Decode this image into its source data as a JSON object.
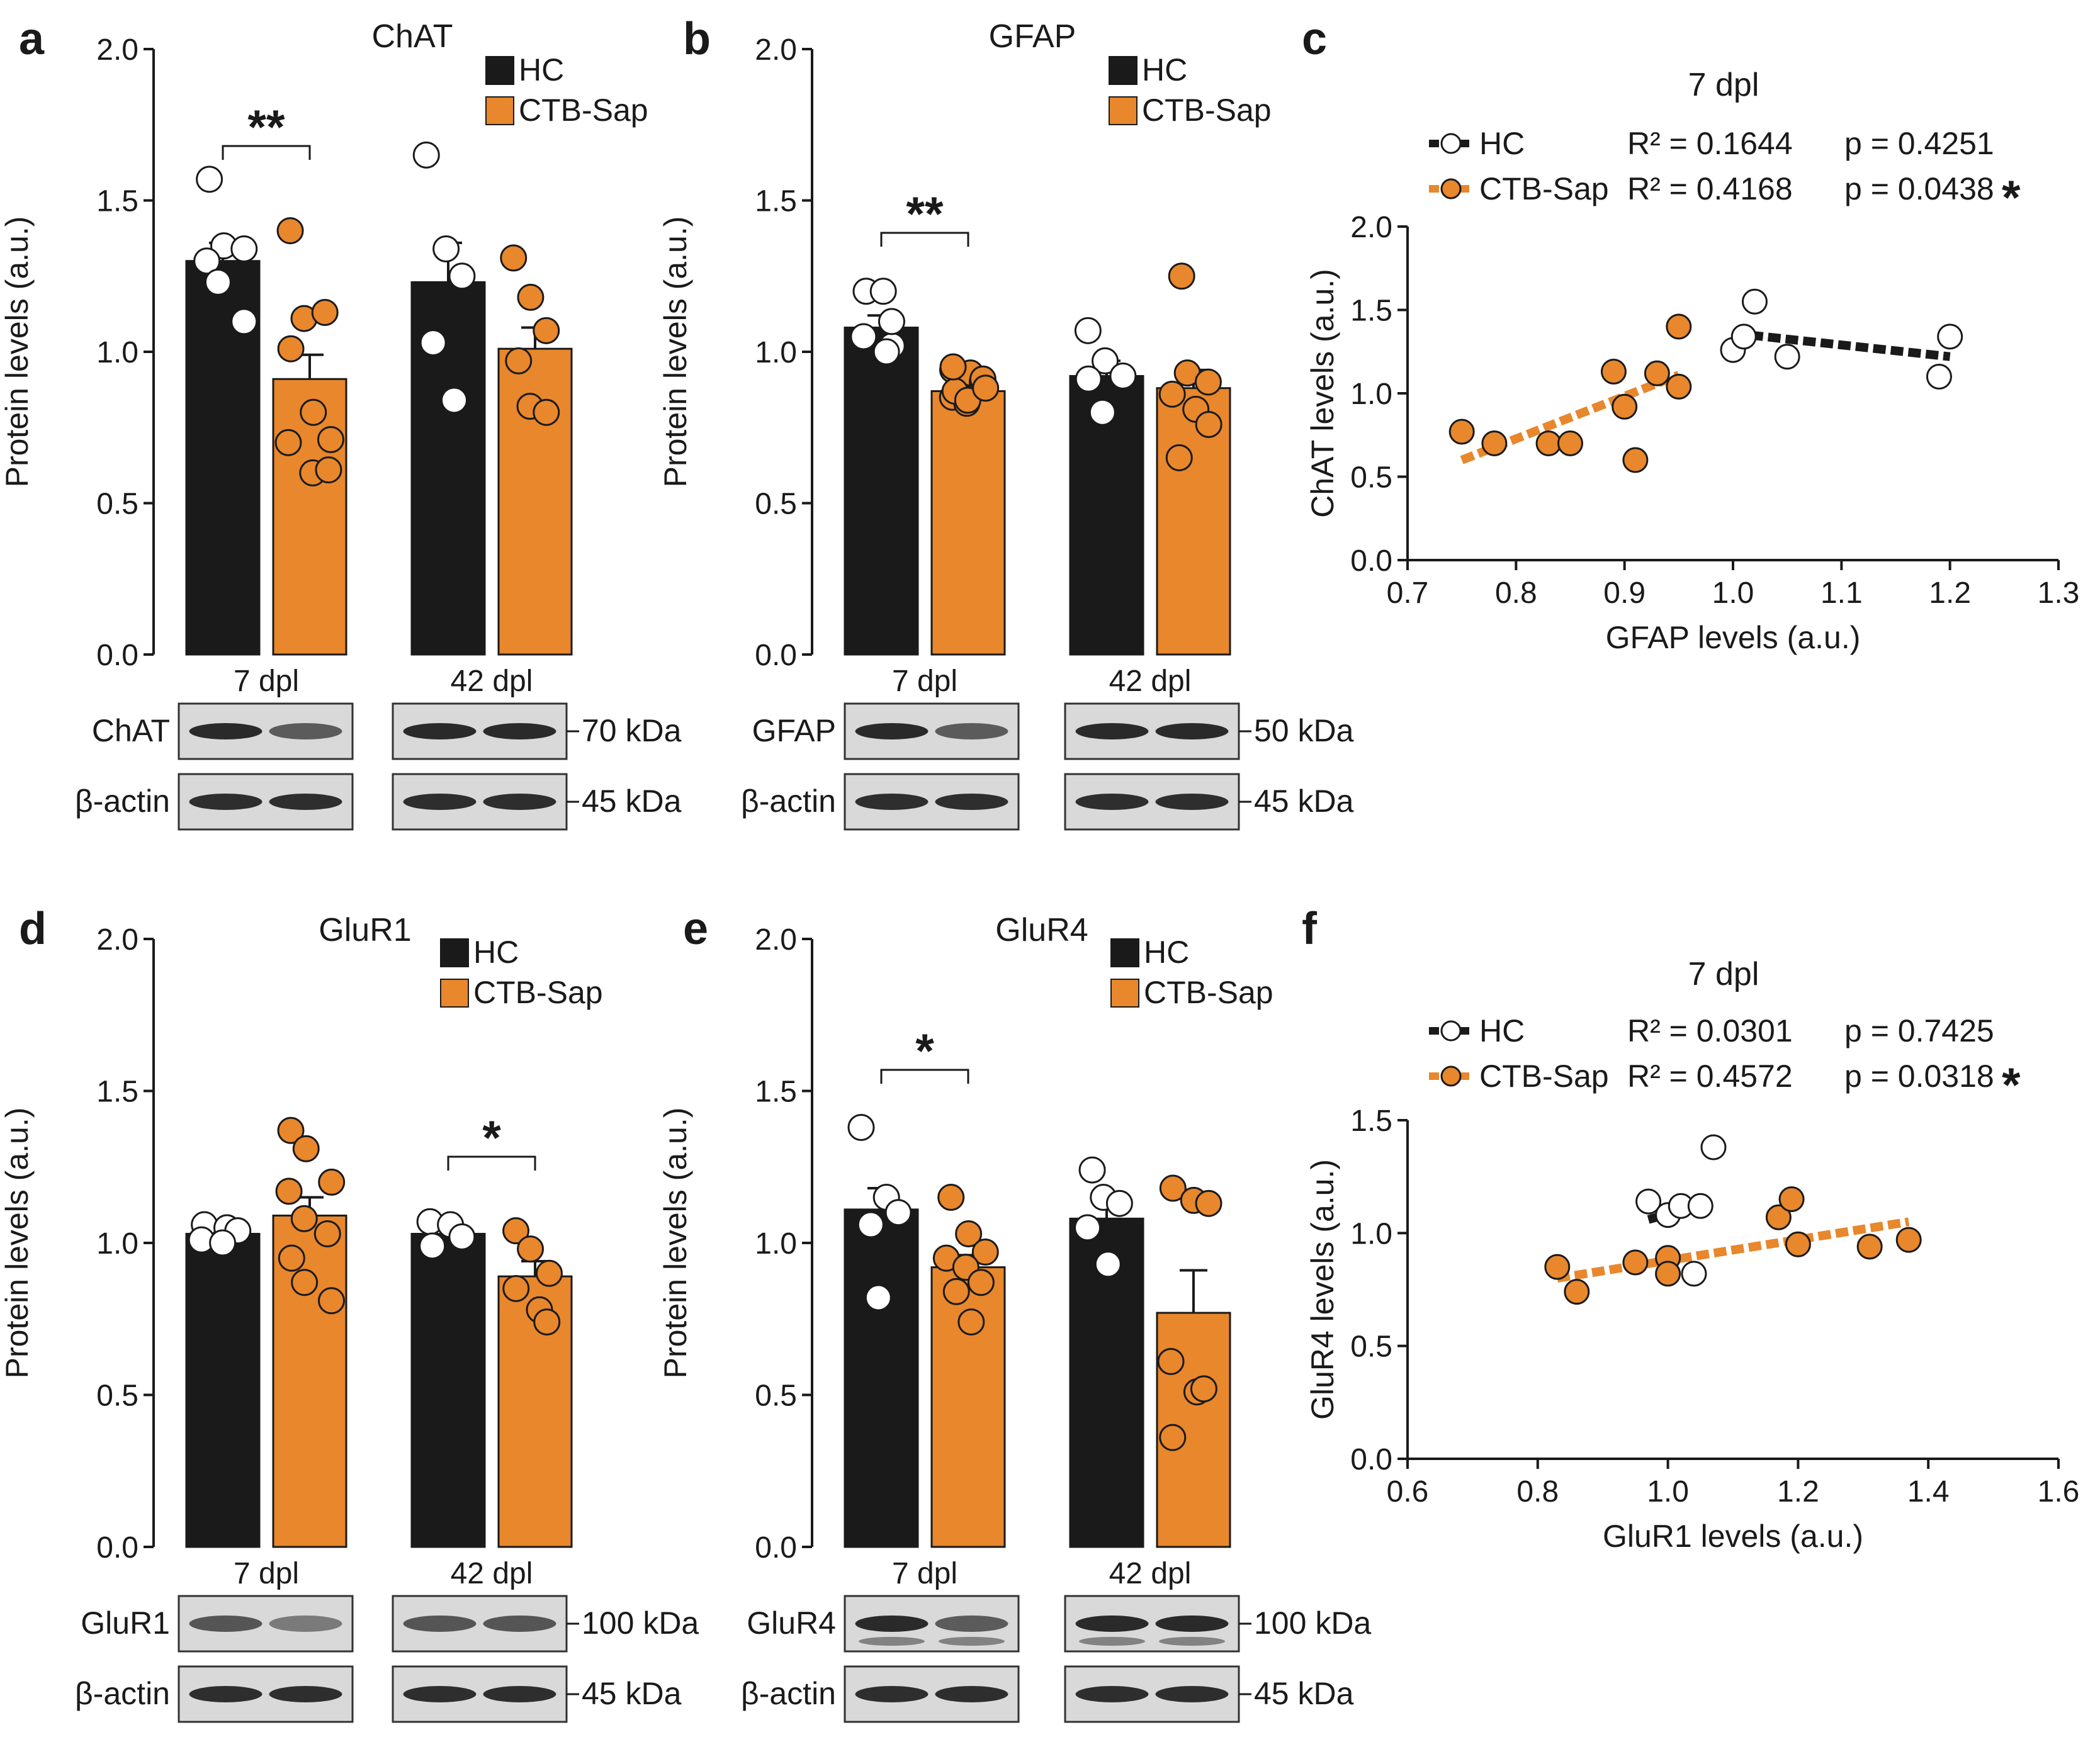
{
  "colors": {
    "hc": "#1a1a1a",
    "ctb": "#e8872c",
    "axis": "#1a1a1a",
    "membrane": "#d9d9d9"
  },
  "legend": {
    "hc": "HC",
    "ctb": "CTB-Sap"
  },
  "chart_data": [
    {
      "panel": "a",
      "type": "bar",
      "title": "ChAT",
      "ylabel": "Protein levels (a.u.)",
      "ylim": [
        0,
        2.0
      ],
      "yticks": [
        "0.0",
        "0.5",
        "1.0",
        "1.5",
        "2.0"
      ],
      "categories": [
        "7 dpl",
        "42 dpl"
      ],
      "series": [
        {
          "name": "HC",
          "means": [
            1.3,
            1.23
          ],
          "sem": [
            0.06,
            0.13
          ],
          "points": [
            [
              1.57,
              1.35,
              1.34,
              1.3,
              1.23,
              1.1
            ],
            [
              1.65,
              1.34,
              1.25,
              1.03,
              0.84
            ]
          ]
        },
        {
          "name": "CTB-Sap",
          "means": [
            0.91,
            1.01
          ],
          "sem": [
            0.08,
            0.07
          ],
          "points": [
            [
              1.4,
              1.11,
              1.13,
              1.01,
              0.8,
              0.71,
              0.7,
              0.6,
              0.61
            ],
            [
              1.31,
              1.18,
              1.07,
              0.97,
              0.82,
              0.8
            ]
          ]
        }
      ],
      "significance": [
        {
          "group": "7 dpl",
          "label": "**"
        }
      ],
      "blot": {
        "gel": "7 dpl",
        "gel2": "42 dpl",
        "rows": [
          {
            "label": "ChAT",
            "kda": "70 kDa"
          },
          {
            "label": "β-actin",
            "kda": "45 kDa"
          }
        ]
      }
    },
    {
      "panel": "b",
      "type": "bar",
      "title": "GFAP",
      "ylabel": "Protein levels (a.u.)",
      "ylim": [
        0,
        2.0
      ],
      "yticks": [
        "0.0",
        "0.5",
        "1.0",
        "1.5",
        "2.0"
      ],
      "categories": [
        "7 dpl",
        "42 dpl"
      ],
      "series": [
        {
          "name": "HC",
          "means": [
            1.08,
            0.92
          ],
          "sem": [
            0.04,
            0.05
          ],
          "points": [
            [
              1.2,
              1.2,
              1.02,
              1.05,
              1.0,
              1.1
            ],
            [
              1.07,
              0.97,
              0.92,
              0.91,
              0.8
            ]
          ]
        },
        {
          "name": "CTB-Sap",
          "means": [
            0.87,
            0.88
          ],
          "sem": [
            0.03,
            0.06
          ],
          "points": [
            [
              0.94,
              0.93,
              0.9,
              0.85,
              0.83,
              0.91,
              0.87,
              0.84,
              0.88,
              0.95
            ],
            [
              1.25,
              0.93,
              0.9,
              0.86,
              0.81,
              0.76,
              0.65
            ]
          ]
        }
      ],
      "significance": [
        {
          "group": "7 dpl",
          "label": "**"
        }
      ],
      "blot": {
        "gel": "7 dpl",
        "gel2": "42 dpl",
        "rows": [
          {
            "label": "GFAP",
            "kda": "50 kDa"
          },
          {
            "label": "β-actin",
            "kda": "45 kDa"
          }
        ]
      }
    },
    {
      "panel": "c",
      "type": "scatter",
      "title": "7 dpl",
      "xlabel": "GFAP levels (a.u.)",
      "ylabel": "ChAT levels (a.u.)",
      "xlim": [
        0.7,
        1.3
      ],
      "ylim": [
        0,
        2.0
      ],
      "xticks": [
        "0.7",
        "0.8",
        "0.9",
        "1.0",
        "1.1",
        "1.2",
        "1.3"
      ],
      "yticks": [
        "0.0",
        "0.5",
        "1.0",
        "1.5",
        "2.0"
      ],
      "series": [
        {
          "name": "HC",
          "r2": "R² = 0.1644",
          "p": "p = 0.4251",
          "fit": {
            "x": [
              1.0,
              1.2
            ],
            "y": [
              1.36,
              1.22
            ]
          },
          "points": [
            [
              1.0,
              1.26
            ],
            [
              1.01,
              1.34
            ],
            [
              1.02,
              1.55
            ],
            [
              1.05,
              1.22
            ],
            [
              1.19,
              1.1
            ],
            [
              1.2,
              1.34
            ]
          ]
        },
        {
          "name": "CTB-Sap",
          "r2": "R² = 0.4168",
          "p": "p = 0.0438",
          "fit": {
            "x": [
              0.75,
              0.95
            ],
            "y": [
              0.6,
              1.11
            ]
          },
          "points": [
            [
              0.75,
              0.77
            ],
            [
              0.78,
              0.7
            ],
            [
              0.83,
              0.7
            ],
            [
              0.85,
              0.7
            ],
            [
              0.89,
              1.13
            ],
            [
              0.9,
              0.92
            ],
            [
              0.91,
              0.6
            ],
            [
              0.93,
              1.12
            ],
            [
              0.95,
              1.4
            ],
            [
              0.95,
              1.04
            ]
          ]
        }
      ],
      "star": "*"
    },
    {
      "panel": "d",
      "type": "bar",
      "title": "GluR1",
      "ylabel": "Protein levels (a.u.)",
      "ylim": [
        0,
        2.0
      ],
      "yticks": [
        "0.0",
        "0.5",
        "1.0",
        "1.5",
        "2.0"
      ],
      "categories": [
        "7 dpl",
        "42 dpl"
      ],
      "series": [
        {
          "name": "HC",
          "means": [
            1.03,
            1.03
          ],
          "sem": [
            0.02,
            0.03
          ],
          "points": [
            [
              1.06,
              1.05,
              1.04,
              1.01,
              1.0
            ],
            [
              1.07,
              1.06,
              1.02,
              0.99
            ]
          ]
        },
        {
          "name": "CTB-Sap",
          "means": [
            1.09,
            0.89
          ],
          "sem": [
            0.06,
            0.05
          ],
          "points": [
            [
              1.37,
              1.31,
              1.2,
              1.17,
              1.08,
              1.03,
              0.95,
              0.87,
              0.81
            ],
            [
              1.04,
              0.98,
              0.9,
              0.85,
              0.78,
              0.74
            ]
          ]
        }
      ],
      "significance": [
        {
          "group": "42 dpl",
          "label": "*"
        }
      ],
      "blot": {
        "gel": "7 dpl",
        "gel2": "42 dpl",
        "rows": [
          {
            "label": "GluR1",
            "kda": "100 kDa"
          },
          {
            "label": "β-actin",
            "kda": "45 kDa"
          }
        ]
      }
    },
    {
      "panel": "e",
      "type": "bar",
      "title": "GluR4",
      "ylabel": "Protein levels (a.u.)",
      "ylim": [
        0,
        2.0
      ],
      "yticks": [
        "0.0",
        "0.5",
        "1.0",
        "1.5",
        "2.0"
      ],
      "categories": [
        "7 dpl",
        "42 dpl"
      ],
      "series": [
        {
          "name": "HC",
          "means": [
            1.11,
            1.08
          ],
          "sem": [
            0.07,
            0.08
          ],
          "points": [
            [
              1.38,
              1.15,
              1.1,
              1.06,
              0.82
            ],
            [
              1.24,
              1.15,
              1.13,
              1.05,
              0.93
            ]
          ]
        },
        {
          "name": "CTB-Sap",
          "means": [
            0.92,
            0.77
          ],
          "sem": [
            0.04,
            0.14
          ],
          "points": [
            [
              1.15,
              1.03,
              0.97,
              0.95,
              0.92,
              0.87,
              0.84,
              0.74
            ],
            [
              1.18,
              1.14,
              1.13,
              0.61,
              0.51,
              0.52,
              0.36
            ]
          ]
        }
      ],
      "significance": [
        {
          "group": "7 dpl",
          "label": "*"
        }
      ],
      "blot": {
        "gel": "7 dpl",
        "gel2": "42 dpl",
        "rows": [
          {
            "label": "GluR4",
            "kda": "100 kDa"
          },
          {
            "label": "β-actin",
            "kda": "45 kDa"
          }
        ]
      }
    },
    {
      "panel": "f",
      "type": "scatter",
      "title": "7 dpl",
      "xlabel": "GluR1 levels (a.u.)",
      "ylabel": "GluR4 levels (a.u.)",
      "xlim": [
        0.6,
        1.6
      ],
      "ylim": [
        0,
        1.5
      ],
      "xticks": [
        "0.6",
        "0.8",
        "1.0",
        "1.2",
        "1.4",
        "1.6"
      ],
      "yticks": [
        "0.0",
        "0.5",
        "1.0",
        "1.5"
      ],
      "series": [
        {
          "name": "HC",
          "r2": "R² = 0.0301",
          "p": "p = 0.7425",
          "fit": {
            "x": [
              0.97,
              1.07
            ],
            "y": [
              1.06,
              1.14
            ]
          },
          "points": [
            [
              0.97,
              1.14
            ],
            [
              1.0,
              1.08
            ],
            [
              1.02,
              1.12
            ],
            [
              1.04,
              0.82
            ],
            [
              1.05,
              1.12
            ],
            [
              1.07,
              1.38
            ]
          ]
        },
        {
          "name": "CTB-Sap",
          "r2": "R² = 0.4572",
          "p": "p = 0.0318",
          "fit": {
            "x": [
              0.83,
              1.37
            ],
            "y": [
              0.8,
              1.05
            ]
          },
          "points": [
            [
              0.83,
              0.85
            ],
            [
              0.86,
              0.74
            ],
            [
              0.95,
              0.87
            ],
            [
              1.0,
              0.89
            ],
            [
              1.0,
              0.82
            ],
            [
              1.17,
              1.07
            ],
            [
              1.19,
              1.15
            ],
            [
              1.2,
              0.95
            ],
            [
              1.31,
              0.94
            ],
            [
              1.37,
              0.97
            ]
          ]
        }
      ],
      "star": "*"
    }
  ]
}
